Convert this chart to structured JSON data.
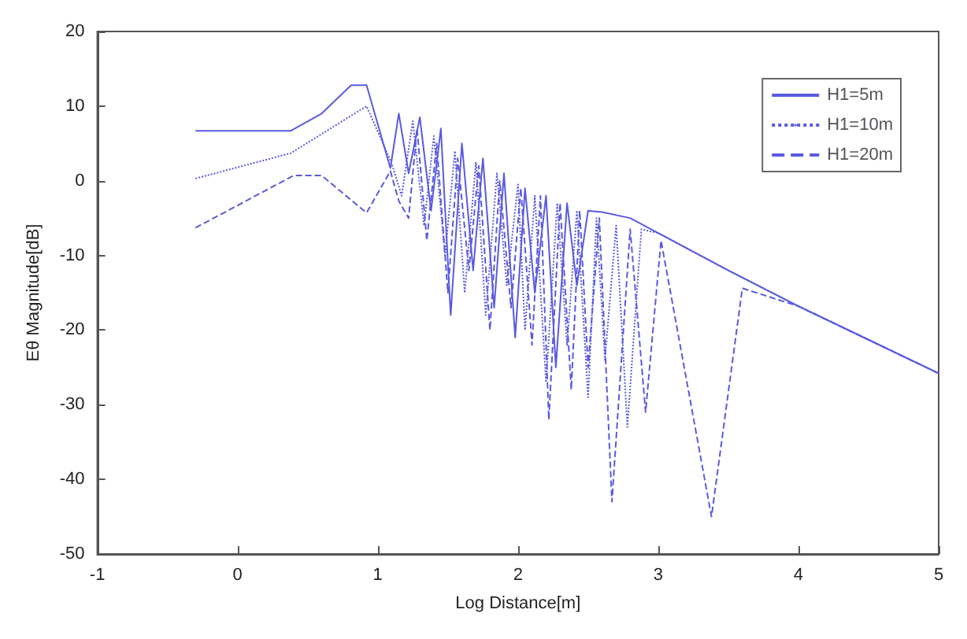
{
  "chart_data": {
    "type": "line",
    "xlabel": "Log Distance[m]",
    "ylabel": "Eθ Magnitude[dB]",
    "xlim": [
      -1,
      5
    ],
    "ylim": [
      -50,
      20
    ],
    "xticks": [
      -1,
      0,
      1,
      2,
      3,
      4,
      5
    ],
    "yticks": [
      -50,
      -40,
      -30,
      -20,
      -10,
      0,
      10,
      20
    ],
    "grid": false,
    "legend": "top right",
    "marker": "none",
    "series": [
      {
        "name": "H1=5m",
        "color": "#5a5ae0",
        "line_style": "solid",
        "x": [
          -0.3,
          0.38,
          0.6,
          0.81,
          0.92,
          1.09,
          1.15,
          1.22,
          1.3,
          1.38,
          1.45,
          1.52,
          1.6,
          1.68,
          1.75,
          1.83,
          1.9,
          1.98,
          2.05,
          2.12,
          2.2,
          2.27,
          2.35,
          2.42,
          2.5,
          2.6,
          2.8,
          3.0,
          3.5,
          4.0,
          4.5,
          5.0
        ],
        "values": [
          6.7,
          6.7,
          9,
          12.8,
          12.8,
          1.7,
          9,
          1,
          8.5,
          -4,
          7,
          -18,
          5,
          -12,
          3,
          -17,
          1,
          -21,
          -1,
          -15,
          -2,
          -25,
          -3,
          -14,
          -4,
          -4.2,
          -5,
          -7,
          -12,
          -16.8,
          -21.3,
          -25.8
        ]
      },
      {
        "name": "H1=10m",
        "color": "#5a5ae0",
        "line_style": "dotted",
        "x": [
          -0.3,
          0.38,
          0.92,
          1.1,
          1.17,
          1.25,
          1.33,
          1.4,
          1.48,
          1.55,
          1.62,
          1.7,
          1.77,
          1.85,
          1.92,
          2.0,
          2.05,
          2.12,
          2.2,
          2.28,
          2.35,
          2.42,
          2.5,
          2.56,
          2.62,
          2.7,
          2.78,
          2.88,
          3.0,
          3.5,
          4.0,
          5.0
        ],
        "values": [
          0.3,
          3.7,
          10,
          2.3,
          -2,
          8,
          -6,
          6,
          -10,
          4,
          -15,
          2.5,
          -18,
          1,
          -14,
          -0.5,
          -20,
          -2,
          -27,
          -3,
          -22,
          -4,
          -29,
          -5,
          -24,
          -6,
          -33,
          -6.5,
          -7,
          -12,
          -16.8,
          -25.8
        ]
      },
      {
        "name": "H1=20m",
        "color": "#5a5ae0",
        "line_style": "dashed",
        "x": [
          -0.3,
          0.4,
          0.6,
          0.92,
          1.09,
          1.15,
          1.22,
          1.28,
          1.35,
          1.42,
          1.5,
          1.57,
          1.65,
          1.72,
          1.8,
          1.87,
          1.95,
          2.02,
          2.1,
          2.16,
          2.22,
          2.3,
          2.38,
          2.44,
          2.5,
          2.58,
          2.67,
          2.8,
          2.91,
          3.02,
          3.38,
          3.6,
          4.0,
          5.0
        ],
        "values": [
          -6.3,
          0.7,
          0.7,
          -4.3,
          1.3,
          -2.7,
          -5,
          7,
          -8,
          5,
          -15,
          3,
          -12,
          2,
          -20,
          0,
          -17,
          -1,
          -22,
          -2,
          -32,
          -3,
          -28,
          -4,
          -25,
          -5,
          -43,
          -6.5,
          -31,
          -8,
          -45,
          -14.4,
          -16.8,
          -25.8
        ]
      }
    ]
  }
}
